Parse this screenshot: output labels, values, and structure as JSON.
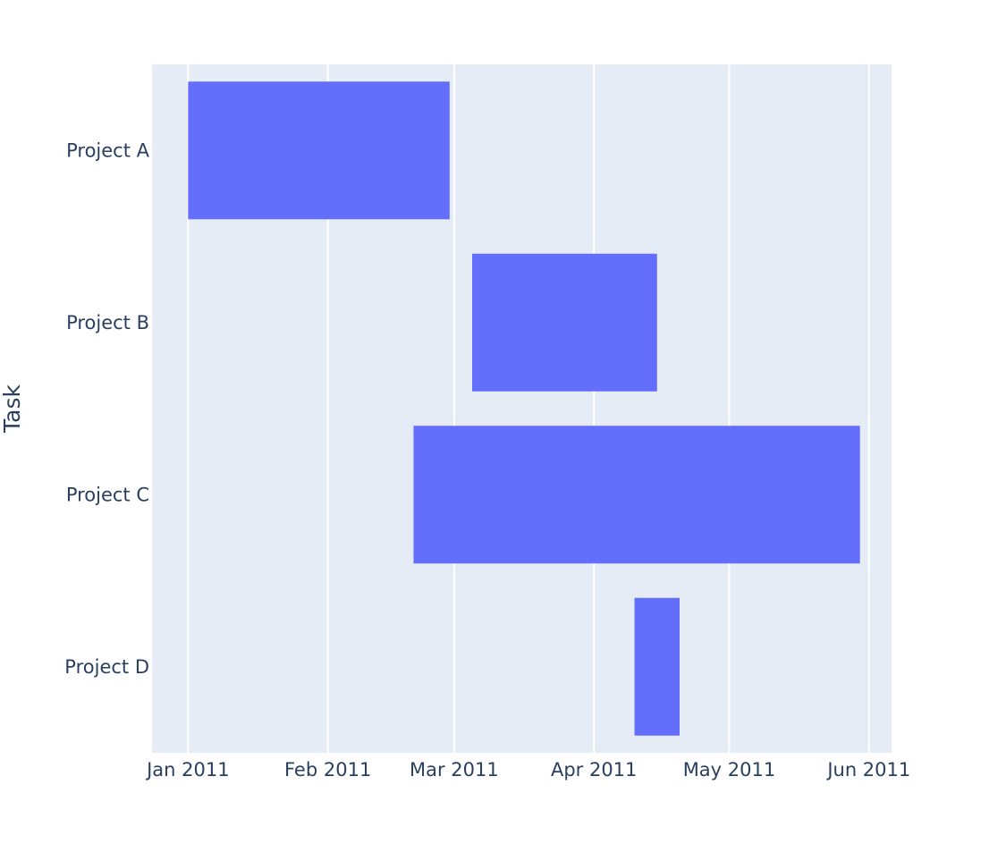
{
  "chart_data": {
    "type": "bar",
    "orientation": "horizontal",
    "title": "",
    "xlabel": "",
    "ylabel": "Task",
    "colors": {
      "bar": "#636efa",
      "plot_bg": "#e5ecf6",
      "grid": "#ffffff",
      "text": "#2a3f5f"
    },
    "grid": true,
    "xlim": [
      "2010-12-24",
      "2011-06-06"
    ],
    "xticks": [
      {
        "date": "2011-01-01",
        "label": "Jan 2011"
      },
      {
        "date": "2011-02-01",
        "label": "Feb 2011"
      },
      {
        "date": "2011-03-01",
        "label": "Mar 2011"
      },
      {
        "date": "2011-04-01",
        "label": "Apr 2011"
      },
      {
        "date": "2011-05-01",
        "label": "May 2011"
      },
      {
        "date": "2011-06-01",
        "label": "Jun 2011"
      }
    ],
    "categories": [
      "Project A",
      "Project B",
      "Project C",
      "Project D"
    ],
    "tasks": [
      {
        "task": "Project A",
        "start": "2011-01-01",
        "finish": "2011-02-28"
      },
      {
        "task": "Project B",
        "start": "2011-03-05",
        "finish": "2011-04-15"
      },
      {
        "task": "Project C",
        "start": "2011-02-20",
        "finish": "2011-05-30"
      },
      {
        "task": "Project D",
        "start": "2011-04-10",
        "finish": "2011-04-20"
      }
    ]
  }
}
